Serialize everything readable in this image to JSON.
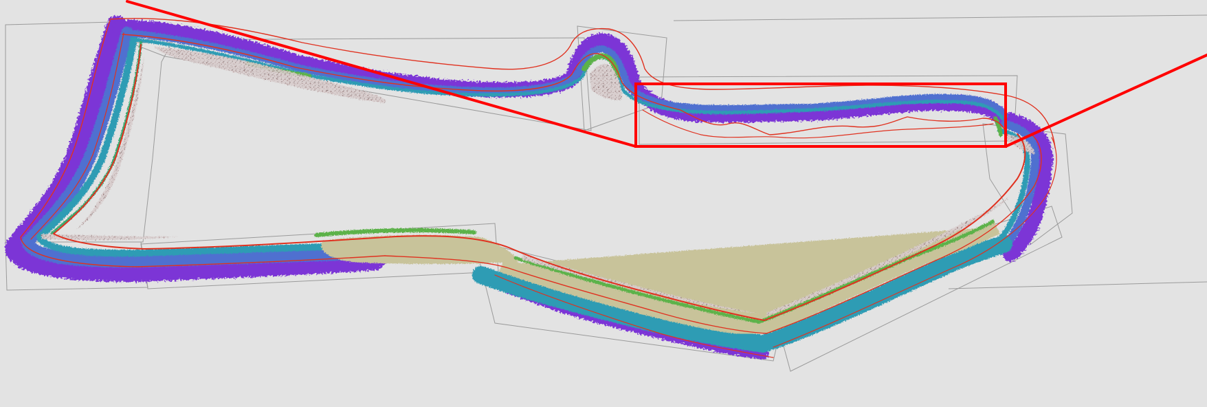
{
  "map": {
    "background_color": "#e3e3e3",
    "survey_tile_outline_color": "#9a9a9a",
    "contour_color": "#e0311f",
    "callout_color": "#ff0000",
    "depth_colors": {
      "deep": "#7b34d6",
      "mid_deep": "#4f6fd0",
      "mid": "#2f9cb4",
      "shallow": "#3aa870",
      "shallow_green": "#5bb24a",
      "reef_flat": "#c8c39a",
      "land_speckle": "#8a6c6c"
    },
    "highlight_box": {
      "label": ""
    }
  }
}
